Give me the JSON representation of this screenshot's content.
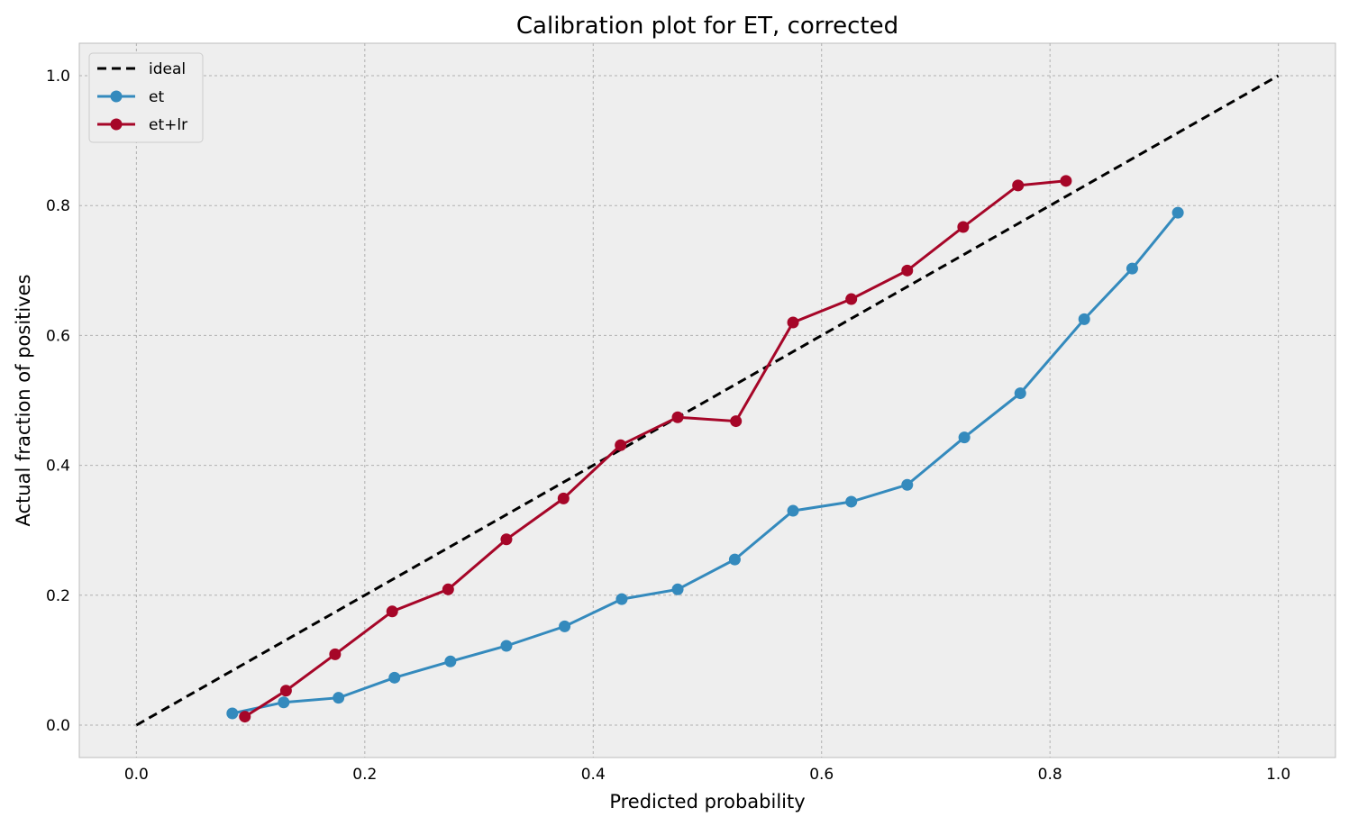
{
  "chart_data": {
    "type": "line",
    "title": "Calibration plot for ET, corrected",
    "xlabel": "Predicted probability",
    "ylabel": "Actual fraction of positives",
    "xlim": [
      -0.05,
      1.05
    ],
    "ylim": [
      -0.05,
      1.05
    ],
    "xticks": [
      0.0,
      0.2,
      0.4,
      0.6,
      0.8,
      1.0
    ],
    "yticks": [
      0.0,
      0.2,
      0.4,
      0.6,
      0.8,
      1.0
    ],
    "xtick_labels": [
      "0.0",
      "0.2",
      "0.4",
      "0.6",
      "0.8",
      "1.0"
    ],
    "ytick_labels": [
      "0.0",
      "0.2",
      "0.4",
      "0.6",
      "0.8",
      "1.0"
    ],
    "grid": true,
    "legend_position": "top-left",
    "series": [
      {
        "name": "ideal",
        "style": "dashed",
        "color": "#000000",
        "markers": false,
        "x": [
          0.0,
          1.0
        ],
        "y": [
          0.0,
          1.0
        ]
      },
      {
        "name": "et",
        "style": "solid",
        "color": "#348ABD",
        "markers": true,
        "x": [
          0.084,
          0.129,
          0.177,
          0.226,
          0.275,
          0.324,
          0.375,
          0.425,
          0.474,
          0.524,
          0.575,
          0.626,
          0.675,
          0.725,
          0.774,
          0.83,
          0.872,
          0.912
        ],
        "y": [
          0.018,
          0.035,
          0.042,
          0.073,
          0.098,
          0.122,
          0.152,
          0.194,
          0.209,
          0.255,
          0.33,
          0.344,
          0.37,
          0.443,
          0.511,
          0.625,
          0.703,
          0.789
        ]
      },
      {
        "name": "et+lr",
        "style": "solid",
        "color": "#A60628",
        "markers": true,
        "x": [
          0.095,
          0.131,
          0.174,
          0.224,
          0.273,
          0.324,
          0.374,
          0.424,
          0.474,
          0.525,
          0.575,
          0.626,
          0.675,
          0.724,
          0.772,
          0.814
        ],
        "y": [
          0.013,
          0.053,
          0.109,
          0.175,
          0.209,
          0.286,
          0.349,
          0.431,
          0.474,
          0.468,
          0.62,
          0.656,
          0.7,
          0.767,
          0.831,
          0.838
        ]
      }
    ]
  }
}
